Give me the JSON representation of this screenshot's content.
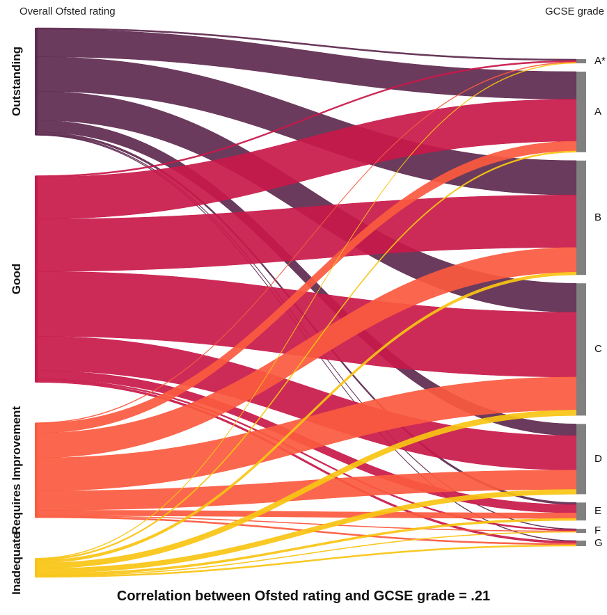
{
  "header": {
    "source_heading": "Overall Ofsted rating",
    "target_heading": "GCSE grade"
  },
  "chart_data": {
    "type": "sankey",
    "title": "Correlation between Ofsted rating and GCSE grade = .21",
    "sources": [
      {
        "name": "Outstanding",
        "color": "#5e2a4f"
      },
      {
        "name": "Good",
        "color": "#c8194a"
      },
      {
        "name": "Requires Improvement",
        "color": "#fb5a3f"
      },
      {
        "name": "Inadequate",
        "color": "#f9c414"
      }
    ],
    "targets": [
      "A*",
      "A",
      "B",
      "C",
      "D",
      "E",
      "F",
      "G"
    ],
    "target_bar_color": "#808080",
    "flows": [
      {
        "source": "Outstanding",
        "target": "A*",
        "value": 2
      },
      {
        "source": "Outstanding",
        "target": "A",
        "value": 40
      },
      {
        "source": "Outstanding",
        "target": "B",
        "value": 50
      },
      {
        "source": "Outstanding",
        "target": "C",
        "value": 42
      },
      {
        "source": "Outstanding",
        "target": "D",
        "value": 17
      },
      {
        "source": "Outstanding",
        "target": "E",
        "value": 3
      },
      {
        "source": "Outstanding",
        "target": "F",
        "value": 1
      },
      {
        "source": "Outstanding",
        "target": "G",
        "value": 1
      },
      {
        "source": "Good",
        "target": "A*",
        "value": 2
      },
      {
        "source": "Good",
        "target": "A",
        "value": 61
      },
      {
        "source": "Good",
        "target": "B",
        "value": 76
      },
      {
        "source": "Good",
        "target": "C",
        "value": 94
      },
      {
        "source": "Good",
        "target": "D",
        "value": 50
      },
      {
        "source": "Good",
        "target": "E",
        "value": 12
      },
      {
        "source": "Good",
        "target": "F",
        "value": 2
      },
      {
        "source": "Good",
        "target": "G",
        "value": 3
      },
      {
        "source": "Requires Improvement",
        "target": "A*",
        "value": 1
      },
      {
        "source": "Requires Improvement",
        "target": "A",
        "value": 14
      },
      {
        "source": "Requires Improvement",
        "target": "B",
        "value": 36
      },
      {
        "source": "Requires Improvement",
        "target": "C",
        "value": 48
      },
      {
        "source": "Requires Improvement",
        "target": "D",
        "value": 28
      },
      {
        "source": "Requires Improvement",
        "target": "E",
        "value": 8
      },
      {
        "source": "Requires Improvement",
        "target": "F",
        "value": 1
      },
      {
        "source": "Requires Improvement",
        "target": "G",
        "value": 2
      },
      {
        "source": "Inadequate",
        "target": "A*",
        "value": 1
      },
      {
        "source": "Inadequate",
        "target": "A",
        "value": 2
      },
      {
        "source": "Inadequate",
        "target": "B",
        "value": 4
      },
      {
        "source": "Inadequate",
        "target": "C",
        "value": 8
      },
      {
        "source": "Inadequate",
        "target": "D",
        "value": 7
      },
      {
        "source": "Inadequate",
        "target": "E",
        "value": 3
      },
      {
        "source": "Inadequate",
        "target": "F",
        "value": 1
      },
      {
        "source": "Inadequate",
        "target": "G",
        "value": 2
      }
    ]
  }
}
